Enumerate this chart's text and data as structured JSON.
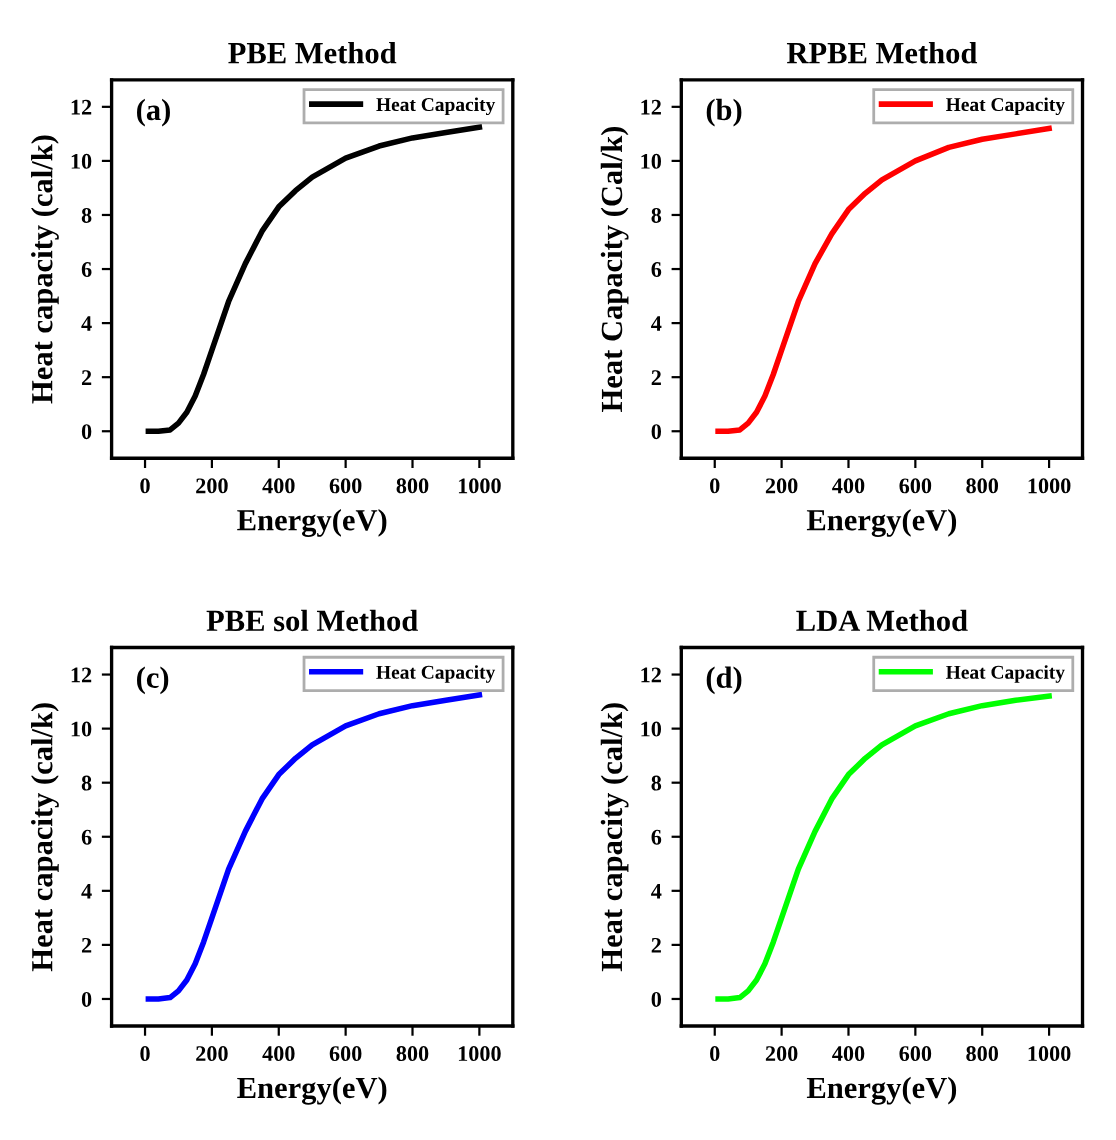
{
  "chart_data": [
    {
      "type": "line",
      "title": "PBE Method",
      "xlabel": "Energy(eV)",
      "ylabel": "Heat capacity (cal/k)",
      "annotations": [
        "(a)"
      ],
      "x": [
        10,
        40,
        75,
        100,
        125,
        150,
        175,
        200,
        250,
        300,
        350,
        400,
        450,
        500,
        600,
        700,
        800,
        900,
        1000
      ],
      "series": [
        {
          "name": "Heat Capacity",
          "color": "#000000",
          "values": [
            0,
            0,
            0.05,
            0.3,
            0.7,
            1.3,
            2.1,
            3.0,
            4.8,
            6.2,
            7.4,
            8.3,
            8.9,
            9.4,
            10.1,
            10.55,
            10.85,
            11.05,
            11.25
          ]
        }
      ],
      "xlim": [
        -100,
        1100
      ],
      "ylim": [
        -1,
        13
      ],
      "xticks": [
        0,
        200,
        400,
        600,
        800,
        1000
      ],
      "yticks": [
        0,
        2,
        4,
        6,
        8,
        10,
        12
      ],
      "legend": "top right",
      "grid": false
    },
    {
      "type": "line",
      "title": "RPBE Method",
      "xlabel": "Energy(eV)",
      "ylabel": "Heat Capacity (Cal/k)",
      "annotations": [
        "(b)"
      ],
      "x": [
        10,
        40,
        75,
        100,
        125,
        150,
        175,
        200,
        250,
        300,
        350,
        400,
        450,
        500,
        600,
        700,
        800,
        900,
        1000
      ],
      "series": [
        {
          "name": "Heat Capacity",
          "color": "#ff0000",
          "values": [
            0,
            0,
            0.05,
            0.3,
            0.7,
            1.3,
            2.1,
            3.0,
            4.8,
            6.2,
            7.3,
            8.2,
            8.8,
            9.3,
            10.0,
            10.5,
            10.8,
            11.0,
            11.2
          ]
        }
      ],
      "xlim": [
        -100,
        1100
      ],
      "ylim": [
        -1,
        13
      ],
      "xticks": [
        0,
        200,
        400,
        600,
        800,
        1000
      ],
      "yticks": [
        0,
        2,
        4,
        6,
        8,
        10,
        12
      ],
      "legend": "top right",
      "grid": false
    },
    {
      "type": "line",
      "title": "PBE sol Method",
      "xlabel": "Energy(eV)",
      "ylabel": "Heat capacity (cal/k)",
      "annotations": [
        "(c)"
      ],
      "x": [
        10,
        40,
        75,
        100,
        125,
        150,
        175,
        200,
        250,
        300,
        350,
        400,
        450,
        500,
        600,
        700,
        800,
        900,
        1000
      ],
      "series": [
        {
          "name": "Heat Capacity",
          "color": "#0000ff",
          "values": [
            0,
            0,
            0.05,
            0.3,
            0.7,
            1.3,
            2.1,
            3.0,
            4.8,
            6.2,
            7.4,
            8.3,
            8.9,
            9.4,
            10.1,
            10.55,
            10.85,
            11.05,
            11.25
          ]
        }
      ],
      "xlim": [
        -100,
        1100
      ],
      "ylim": [
        -1,
        13
      ],
      "xticks": [
        0,
        200,
        400,
        600,
        800,
        1000
      ],
      "yticks": [
        0,
        2,
        4,
        6,
        8,
        10,
        12
      ],
      "legend": "top right",
      "grid": false
    },
    {
      "type": "line",
      "title": "LDA Method",
      "xlabel": "Energy(eV)",
      "ylabel": "Heat capacity (cal/k)",
      "annotations": [
        "(d)"
      ],
      "x": [
        10,
        40,
        75,
        100,
        125,
        150,
        175,
        200,
        250,
        300,
        350,
        400,
        450,
        500,
        600,
        700,
        800,
        900,
        1000
      ],
      "series": [
        {
          "name": "Heat Capacity",
          "color": "#00ff00",
          "values": [
            0,
            0,
            0.05,
            0.3,
            0.7,
            1.3,
            2.1,
            3.0,
            4.8,
            6.2,
            7.4,
            8.3,
            8.9,
            9.4,
            10.1,
            10.55,
            10.85,
            11.05,
            11.2
          ]
        }
      ],
      "xlim": [
        -100,
        1100
      ],
      "ylim": [
        -1,
        13
      ],
      "xticks": [
        0,
        200,
        400,
        600,
        800,
        1000
      ],
      "yticks": [
        0,
        2,
        4,
        6,
        8,
        10,
        12
      ],
      "legend": "top right",
      "grid": false
    }
  ]
}
